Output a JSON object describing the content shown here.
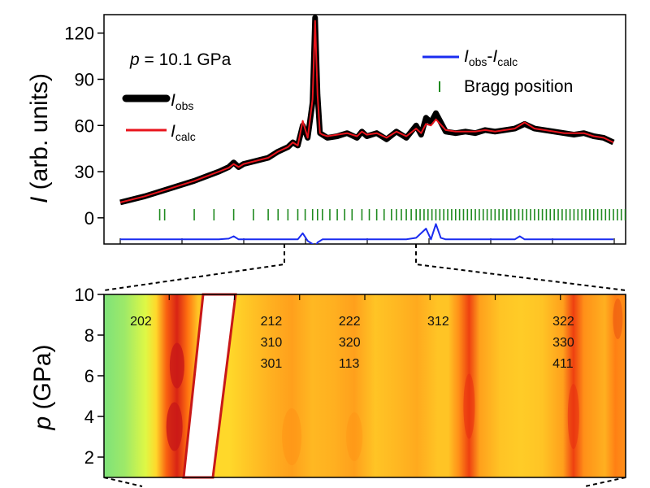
{
  "chart_data": [
    {
      "type": "line",
      "annotation": "p = 10.1 GPa",
      "annotation_var": "p",
      "annotation_value": " = 10.1 GPa",
      "ylabel": "I (arb. units)",
      "ylabel_var": "I",
      "ylabel_rest": " (arb. units)",
      "yticks": [
        0,
        30,
        60,
        90,
        120
      ],
      "ylim": [
        -17,
        132
      ],
      "xlim": [
        0,
        100
      ],
      "legend": {
        "obs_main": "I",
        "obs_sub": "obs",
        "calc_main": "I",
        "calc_sub": "calc",
        "diff_main1": "I",
        "diff_sub1": "obs",
        "diff_sep": "-",
        "diff_main2": "I",
        "diff_sub2": "calc",
        "bragg": "Bragg position"
      },
      "colors": {
        "obs": "#000000",
        "calc": "#e8141c",
        "diff": "#1a2cf0",
        "bragg": "#1f8a1f"
      },
      "series": [
        {
          "name": "Iobs",
          "x": [
            0,
            5,
            10,
            15,
            20,
            22,
            23,
            24,
            25,
            30,
            32,
            34,
            35,
            36,
            37,
            38,
            39,
            39.5,
            40,
            40.5,
            41,
            42,
            44,
            46,
            48,
            49,
            50,
            52,
            54,
            56,
            58,
            60,
            61,
            62,
            63,
            64,
            66,
            68,
            70,
            72,
            74,
            76,
            78,
            80,
            82,
            84,
            86,
            88,
            90,
            92,
            94,
            96,
            98,
            100
          ],
          "y": [
            10,
            14,
            19,
            24,
            30,
            33,
            36,
            33,
            35,
            39,
            43,
            46,
            49,
            47,
            60,
            52,
            75,
            130,
            80,
            55,
            54,
            52,
            53,
            55,
            52,
            56,
            53,
            55,
            51,
            56,
            52,
            60,
            54,
            65,
            62,
            68,
            56,
            55,
            56,
            55,
            57,
            56,
            57,
            58,
            61,
            58,
            57,
            56,
            55,
            54,
            55,
            53,
            52,
            49
          ]
        },
        {
          "name": "Icalc",
          "x": [
            0,
            5,
            10,
            15,
            20,
            22,
            23,
            24,
            25,
            30,
            32,
            34,
            35,
            36,
            37,
            38,
            39,
            39.5,
            40,
            40.5,
            41,
            42,
            44,
            46,
            48,
            49,
            50,
            52,
            54,
            56,
            58,
            60,
            61,
            62,
            63,
            64,
            66,
            68,
            70,
            72,
            74,
            76,
            78,
            80,
            82,
            84,
            86,
            88,
            90,
            92,
            94,
            96,
            98,
            100
          ],
          "y": [
            10,
            14,
            19,
            24,
            30,
            32.5,
            35,
            33,
            35,
            39,
            43,
            46,
            49,
            47,
            63,
            52,
            77,
            128,
            80,
            55,
            54,
            53,
            54,
            55,
            53,
            56,
            54,
            55,
            52,
            56,
            53,
            58,
            55,
            61,
            60,
            64,
            57,
            56,
            56,
            56,
            57,
            56,
            57,
            58,
            62,
            58,
            57,
            56,
            55,
            55,
            55,
            53,
            52,
            49
          ]
        },
        {
          "name": "Iobs-Icalc",
          "x": [
            0,
            10,
            20,
            22,
            23,
            24,
            30,
            36,
            37,
            38,
            39,
            39.5,
            40,
            41,
            42,
            50,
            58,
            60,
            62,
            63,
            64,
            65,
            66,
            70,
            80,
            81,
            82,
            90,
            98,
            100
          ],
          "y": [
            -14,
            -14,
            -14,
            -13.5,
            -12,
            -14,
            -14,
            -14,
            -10,
            -15,
            -17,
            -19,
            -16,
            -14,
            -14,
            -14,
            -14,
            -13,
            -7,
            -14,
            -4,
            -13,
            -14,
            -14,
            -14,
            -12,
            -14,
            -14,
            -14,
            -14
          ]
        }
      ],
      "bragg_y": 2,
      "bragg_positions": [
        8,
        9,
        15,
        19,
        23,
        27,
        30,
        32,
        34,
        36,
        37.5,
        39,
        40,
        41,
        42.5,
        44,
        45.5,
        47,
        49,
        50.5,
        52,
        53.5,
        55,
        56,
        57,
        58,
        59,
        60,
        60.8,
        61.6,
        62.4,
        63.2,
        64,
        64.8,
        65.6,
        66.4,
        67.2,
        68,
        68.8,
        69.6,
        70.4,
        71.2,
        72,
        72.8,
        73.6,
        74.4,
        75.2,
        76,
        76.8,
        77.6,
        78.4,
        79.2,
        80,
        80.8,
        81.6,
        82.4,
        83.2,
        84,
        84.8,
        85.6,
        86.4,
        87.2,
        88,
        88.8,
        89.6,
        90.4,
        91.2,
        92,
        92.8,
        93.6,
        94.4,
        95.2,
        96,
        96.8,
        97.6,
        98.4,
        99.2,
        100,
        100.8,
        101.6,
        102.4,
        103.2
      ]
    },
    {
      "type": "heatmap",
      "ylabel": "p (GPa)",
      "ylabel_var": "p",
      "ylabel_rest": " (GPa)",
      "yticks": [
        2,
        4,
        6,
        8,
        10
      ],
      "ylim": [
        1,
        10
      ],
      "xlim": [
        0,
        100
      ],
      "colormap": [
        "#7ee27a",
        "#ffff33",
        "#ffb020",
        "#ff7010",
        "#e83010",
        "#c81818"
      ],
      "columns": [
        {
          "x": 0,
          "i": 0.0
        },
        {
          "x": 4,
          "i": 0.05
        },
        {
          "x": 8,
          "i": 0.15
        },
        {
          "x": 10,
          "i": 0.3
        },
        {
          "x": 12,
          "i": 0.65
        },
        {
          "x": 14,
          "i": 0.9
        },
        {
          "x": 16,
          "i": 0.6
        },
        {
          "x": 18,
          "i": 0.35
        },
        {
          "x": 20,
          "i": 0.3
        },
        {
          "x": 24,
          "i": 0.3
        },
        {
          "x": 28,
          "i": 0.35
        },
        {
          "x": 32,
          "i": 0.4
        },
        {
          "x": 36,
          "i": 0.45
        },
        {
          "x": 40,
          "i": 0.38
        },
        {
          "x": 44,
          "i": 0.4
        },
        {
          "x": 48,
          "i": 0.45
        },
        {
          "x": 52,
          "i": 0.35
        },
        {
          "x": 56,
          "i": 0.38
        },
        {
          "x": 60,
          "i": 0.42
        },
        {
          "x": 64,
          "i": 0.35
        },
        {
          "x": 66,
          "i": 0.35
        },
        {
          "x": 68,
          "i": 0.5
        },
        {
          "x": 70,
          "i": 0.75
        },
        {
          "x": 72,
          "i": 0.45
        },
        {
          "x": 76,
          "i": 0.35
        },
        {
          "x": 80,
          "i": 0.33
        },
        {
          "x": 84,
          "i": 0.35
        },
        {
          "x": 88,
          "i": 0.45
        },
        {
          "x": 90,
          "i": 0.75
        },
        {
          "x": 92,
          "i": 0.5
        },
        {
          "x": 96,
          "i": 0.4
        },
        {
          "x": 98,
          "i": 0.55
        },
        {
          "x": 100,
          "i": 0.5
        }
      ],
      "hkl_labels": [
        {
          "x": 5,
          "lines": [
            "202"
          ]
        },
        {
          "x": 30,
          "lines": [
            "212",
            "310",
            "301"
          ]
        },
        {
          "x": 45,
          "lines": [
            "222",
            "320",
            "113"
          ]
        },
        {
          "x": 62,
          "lines": [
            "312"
          ]
        },
        {
          "x": 86,
          "lines": [
            "322",
            "330",
            "411"
          ]
        }
      ]
    }
  ]
}
